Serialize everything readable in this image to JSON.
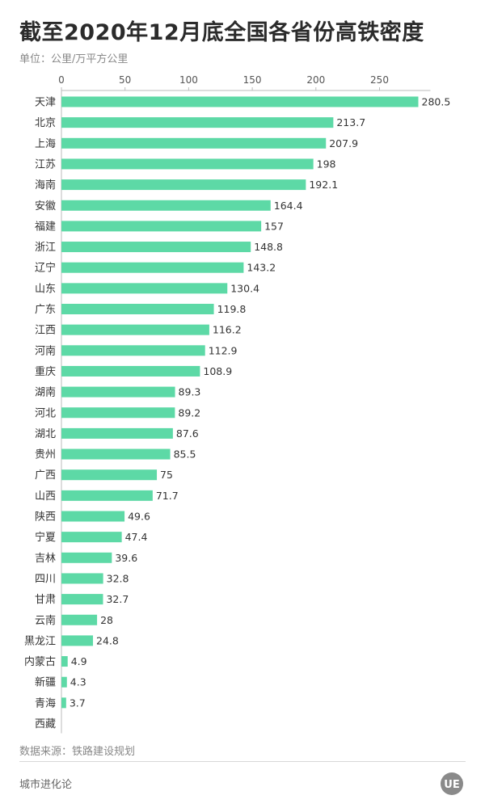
{
  "title": "截至2020年12月底全国各省份高铁密度",
  "unit": "单位：公里/万平方公里",
  "source": "数据来源：铁路建设规划",
  "brand": "城市进化论",
  "logo_text": "UE",
  "colors": {
    "bar": "#5dd9a6",
    "axis": "#bbbbbb",
    "label": "#333333"
  },
  "chart_data": {
    "type": "bar",
    "orientation": "horizontal",
    "title": "截至2020年12月底全国各省份高铁密度",
    "xlabel": "",
    "ylabel": "",
    "xlim": [
      0,
      290
    ],
    "xticks": [
      0,
      50,
      100,
      150,
      200,
      250
    ],
    "categories": [
      "天津",
      "北京",
      "上海",
      "江苏",
      "海南",
      "安徽",
      "福建",
      "浙江",
      "辽宁",
      "山东",
      "广东",
      "江西",
      "河南",
      "重庆",
      "湖南",
      "河北",
      "湖北",
      "贵州",
      "广西",
      "山西",
      "陕西",
      "宁夏",
      "吉林",
      "四川",
      "甘肃",
      "云南",
      "黑龙江",
      "内蒙古",
      "新疆",
      "青海",
      "西藏"
    ],
    "values": [
      280.5,
      213.7,
      207.9,
      198,
      192.1,
      164.4,
      157,
      148.8,
      143.2,
      130.4,
      119.8,
      116.2,
      112.9,
      108.9,
      89.3,
      89.2,
      87.6,
      85.5,
      75,
      71.7,
      49.6,
      47.4,
      39.6,
      32.8,
      32.7,
      28,
      24.8,
      4.9,
      4.3,
      3.7,
      null
    ],
    "value_labels": [
      "280.5",
      "213.7",
      "207.9",
      "198",
      "192.1",
      "164.4",
      "157",
      "148.8",
      "143.2",
      "130.4",
      "119.8",
      "116.2",
      "112.9",
      "108.9",
      "89.3",
      "89.2",
      "87.6",
      "85.5",
      "75",
      "71.7",
      "49.6",
      "47.4",
      "39.6",
      "32.8",
      "32.7",
      "28",
      "24.8",
      "4.9",
      "4.3",
      "3.7",
      ""
    ],
    "grid": false,
    "legend": "none"
  }
}
